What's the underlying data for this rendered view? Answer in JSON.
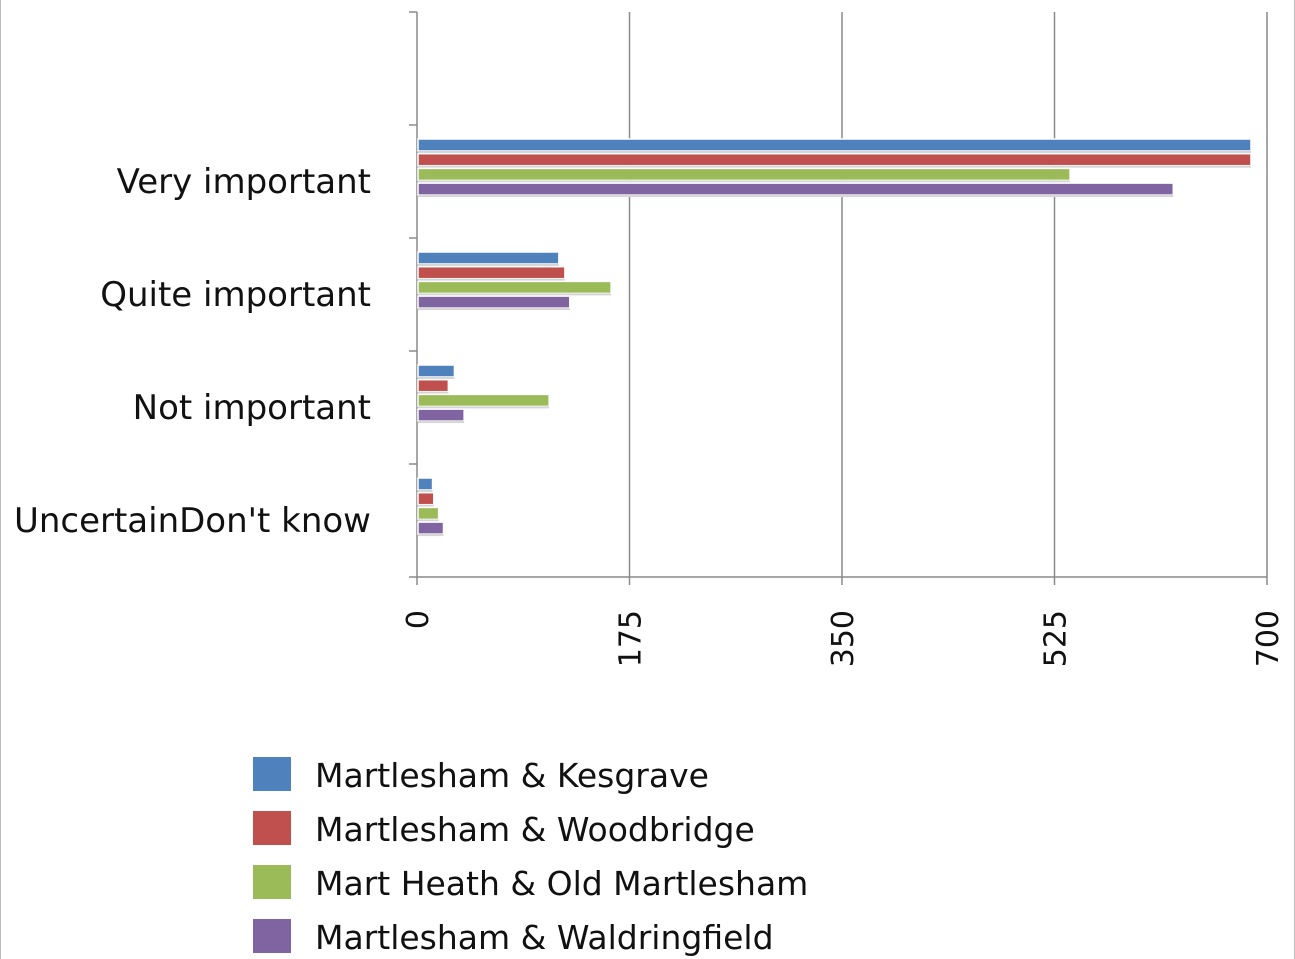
{
  "chart_data": {
    "type": "bar",
    "orientation": "horizontal",
    "title": "",
    "xlabel": "",
    "ylabel": "",
    "categories": [
      "Very important",
      "Quite important",
      "Not important",
      "UncertainDon't know"
    ],
    "x_ticks": [
      "0",
      "175",
      "350",
      "525",
      "700"
    ],
    "xlim": [
      0,
      700
    ],
    "grid": true,
    "legend_position": "bottom",
    "series": [
      {
        "name": "Martlesham & Kesgrave",
        "color": "#4f81bd",
        "values": [
          686,
          116,
          30,
          12
        ]
      },
      {
        "name": "Martlesham & Woodbridge",
        "color": "#c0504d",
        "values": [
          686,
          121,
          25,
          13
        ]
      },
      {
        "name": "Mart Heath  & Old Martlesham",
        "color": "#9bbb59",
        "values": [
          537,
          159,
          108,
          17
        ]
      },
      {
        "name": "Martlesham & Waldringfield",
        "color": "#8064a2",
        "values": [
          622,
          125,
          38,
          21
        ]
      }
    ]
  }
}
